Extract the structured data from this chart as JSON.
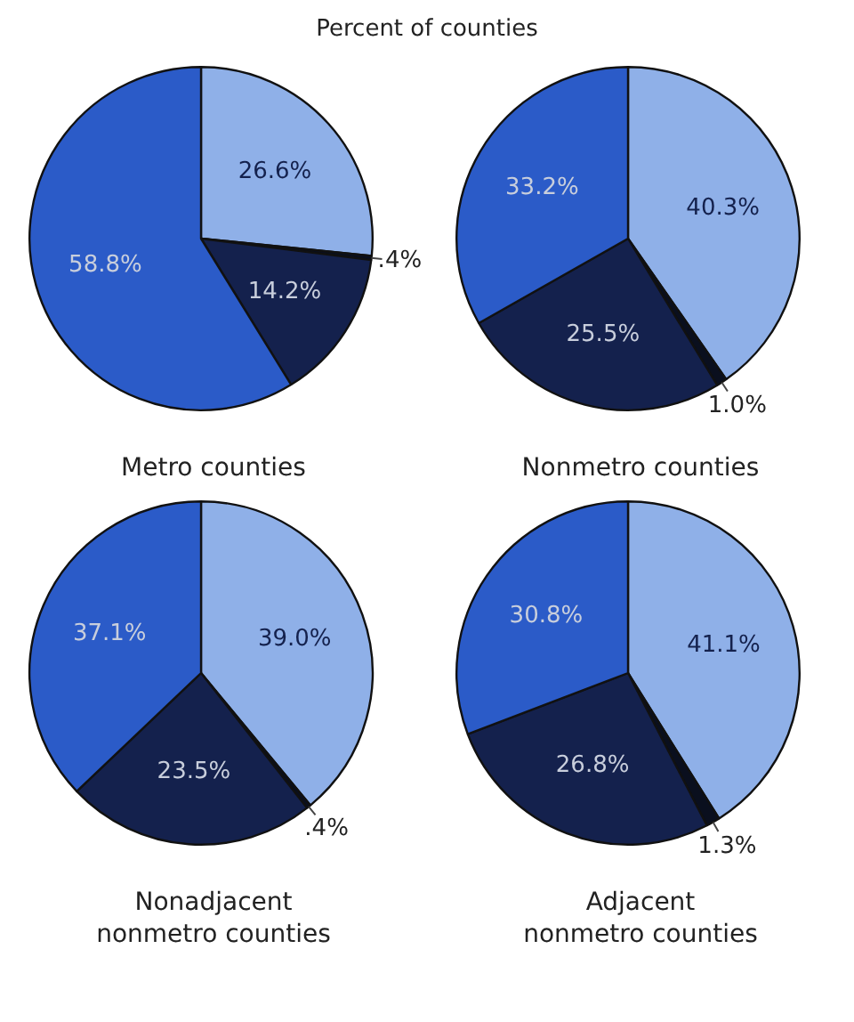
{
  "chart_data": [
    {
      "type": "pie",
      "subtitle": "Percent of counties",
      "title": "Metro counties",
      "categories": [
        null,
        null,
        null,
        null
      ],
      "values": [
        26.6,
        0.4,
        14.2,
        58.8
      ],
      "colors": [
        "#8fb0e8",
        "#0a0f1e",
        "#14214d",
        "#2b5bc8"
      ],
      "value_labels": [
        "26.6%",
        ".4%",
        "14.2%",
        "58.8%"
      ]
    },
    {
      "type": "pie",
      "title": "Nonmetro counties",
      "categories": [
        null,
        null,
        null,
        null
      ],
      "values": [
        40.3,
        1.0,
        25.5,
        33.2
      ],
      "colors": [
        "#8fb0e8",
        "#0a0f1e",
        "#14214d",
        "#2b5bc8"
      ],
      "value_labels": [
        "40.3%",
        "1.0%",
        "25.5%",
        "33.2%"
      ]
    },
    {
      "type": "pie",
      "title": "Nonadjacent\nnonmetro counties",
      "categories": [
        null,
        null,
        null,
        null
      ],
      "values": [
        39.0,
        0.4,
        23.5,
        37.1
      ],
      "colors": [
        "#8fb0e8",
        "#0a0f1e",
        "#14214d",
        "#2b5bc8"
      ],
      "value_labels": [
        "39.0%",
        ".4%",
        "23.5%",
        "37.1%"
      ]
    },
    {
      "type": "pie",
      "title": "Adjacent\nnonmetro counties",
      "categories": [
        null,
        null,
        null,
        null
      ],
      "values": [
        41.1,
        1.3,
        26.8,
        30.8
      ],
      "colors": [
        "#8fb0e8",
        "#0a0f1e",
        "#14214d",
        "#2b5bc8"
      ],
      "value_labels": [
        "41.1%",
        "1.3%",
        "26.8%",
        "30.8%"
      ]
    }
  ]
}
